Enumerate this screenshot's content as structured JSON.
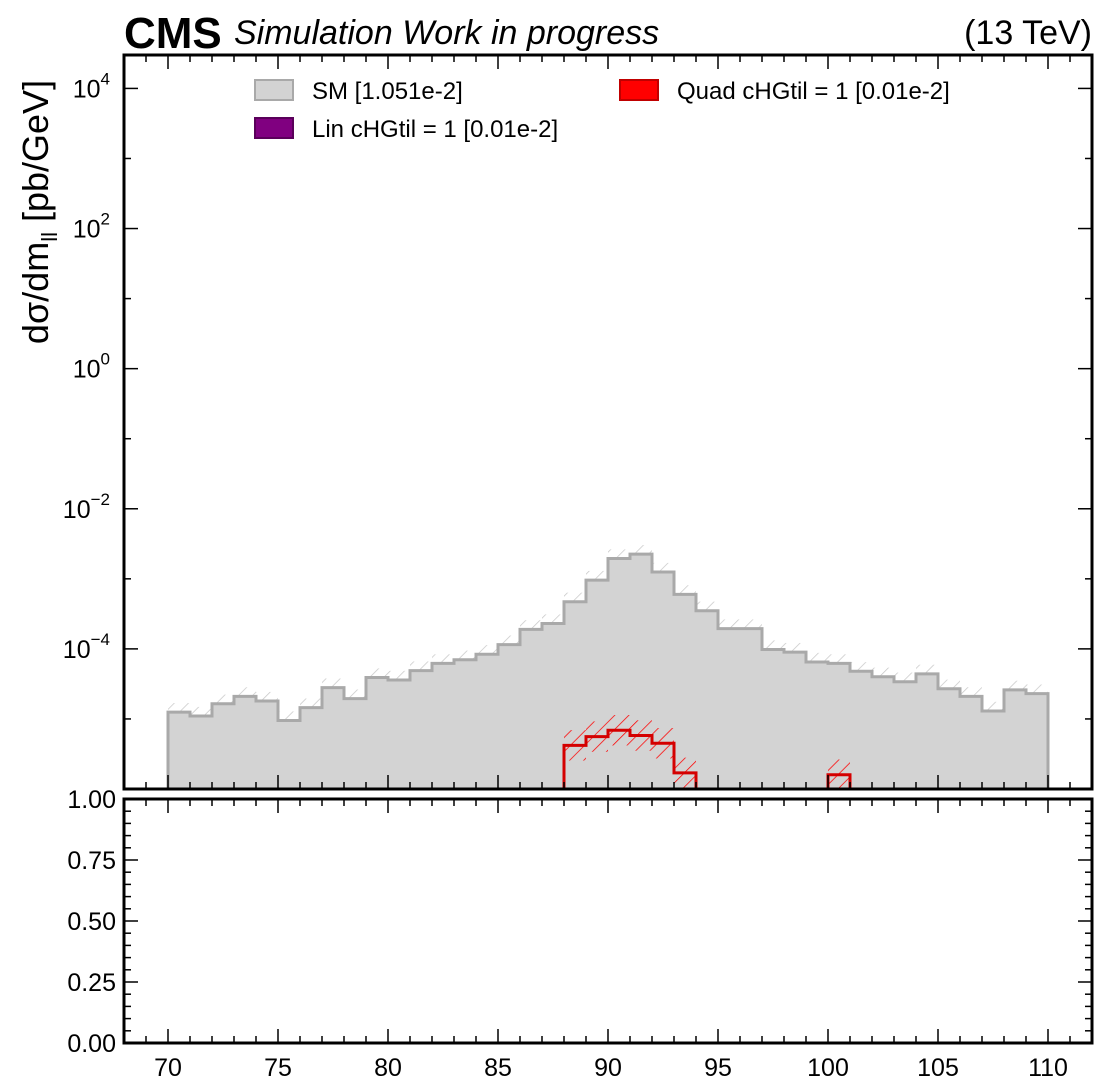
{
  "header": {
    "experiment": "CMS",
    "status": "Simulation Work in progress",
    "energy": "(13 TeV)"
  },
  "legend": {
    "sm": "SM [1.051e-2]",
    "lin": "Lin cHGtil = 1 [0.01e-2]",
    "quad": "Quad cHGtil = 1 [0.01e-2]"
  },
  "axes": {
    "ylabel_main": "dσ/dm",
    "ylabel_sub": "ll",
    "ylabel_unit": " [pb/GeV]"
  },
  "colors": {
    "sm_fill": "#d3d3d3",
    "sm_line": "#a9a9a9",
    "lin": "#800080",
    "quad": "#ff0000",
    "quad_line": "#d40000"
  },
  "chart_data": {
    "type": "histogram",
    "main_panel": {
      "yscale": "log",
      "ylim": [
        1e-06,
        30000.0
      ],
      "xlim": [
        68,
        112
      ],
      "yticks": [
        {
          "value": 10000.0,
          "base": "10",
          "exp": "4"
        },
        {
          "value": 100.0,
          "base": "10",
          "exp": "2"
        },
        {
          "value": 1,
          "base": "10",
          "exp": "0"
        },
        {
          "value": 0.01,
          "base": "10",
          "exp": "−2"
        },
        {
          "value": 0.0001,
          "base": "10",
          "exp": "−4"
        }
      ],
      "bin_edges": [
        70,
        71,
        72,
        73,
        74,
        75,
        76,
        77,
        78,
        79,
        80,
        81,
        82,
        83,
        84,
        85,
        86,
        87,
        88,
        89,
        90,
        91,
        92,
        93,
        94,
        95,
        96,
        97,
        98,
        99,
        100,
        101,
        102,
        103,
        104,
        105,
        106,
        107,
        108,
        109,
        110
      ],
      "series": [
        {
          "name": "SM [1.051e-2]",
          "style": "filled-step",
          "values": [
            1.25e-05,
            1.1e-05,
            1.65e-05,
            2.1e-05,
            1.8e-05,
            9.5e-06,
            1.45e-05,
            2.8e-05,
            1.95e-05,
            3.9e-05,
            3.6e-05,
            4.9e-05,
            6.2e-05,
            7e-05,
            8.4e-05,
            0.000115,
            0.00019,
            0.00023,
            0.00047,
            0.00096,
            0.00195,
            0.00225,
            0.00125,
            0.0006,
            0.00035,
            0.000195,
            0.000195,
            9.8e-05,
            9e-05,
            6.5e-05,
            6.2e-05,
            4.8e-05,
            4e-05,
            3.4e-05,
            4.4e-05,
            2.7e-05,
            2.1e-05,
            1.3e-05,
            2.6e-05,
            2.3e-05
          ]
        },
        {
          "name": "Lin cHGtil = 1 [0.01e-2]",
          "style": "step",
          "values": []
        },
        {
          "name": "Quad cHGtil = 1 [0.01e-2]",
          "style": "step",
          "bins": [
            {
              "x0": 88,
              "x1": 89,
              "value": 4.2e-06
            },
            {
              "x0": 89,
              "x1": 90,
              "value": 5.6e-06
            },
            {
              "x0": 90,
              "x1": 91,
              "value": 6.9e-06
            },
            {
              "x0": 91,
              "x1": 92,
              "value": 5.8e-06
            },
            {
              "x0": 92,
              "x1": 93,
              "value": 4.5e-06
            },
            {
              "x0": 93,
              "x1": 94,
              "value": 1.7e-06
            },
            {
              "x0": 100,
              "x1": 101,
              "value": 1.6e-06
            }
          ]
        }
      ]
    },
    "ratio_panel": {
      "ylim": [
        0,
        1
      ],
      "yticks": [
        "0.00",
        "0.25",
        "0.50",
        "0.75",
        "1.00"
      ],
      "xticks": [
        "70",
        "75",
        "80",
        "85",
        "90",
        "95",
        "100",
        "105",
        "110"
      ]
    }
  }
}
